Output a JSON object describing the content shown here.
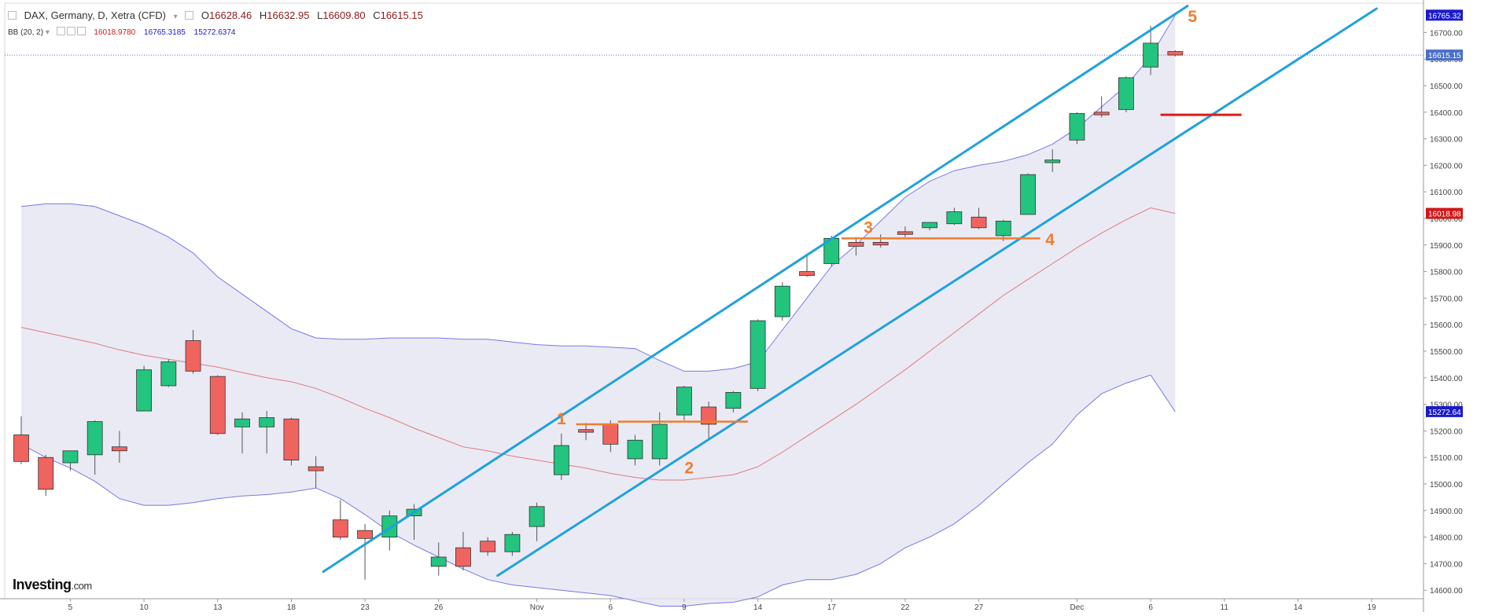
{
  "header": {
    "symbol": "DAX, Germany, D, Xetra (CFD)",
    "open_key": "O",
    "open": "16628.46",
    "high_key": "H",
    "high": "16632.95",
    "low_key": "L",
    "low": "16609.80",
    "close_key": "C",
    "close": "16615.15"
  },
  "indicator": {
    "label": "BB (20, 2)",
    "middle": "16018.9780",
    "upper": "16765.3185",
    "lower": "15272.6374"
  },
  "logo": {
    "brand": "Investing",
    "suffix": ".com"
  },
  "colors": {
    "bull": "#22c47e",
    "bear": "#f06460",
    "band_fill": "#e6e6f2",
    "band_line": "#7777e8",
    "middle_line": "#e07a7a",
    "channel": "#1fa1dd",
    "orange": "#f07d2e",
    "red_marker": "#dd1c1c"
  },
  "chart_data": {
    "type": "candlestick",
    "title": "DAX, Germany, D, Xetra (CFD)",
    "ylim": [
      14580,
      16800
    ],
    "y_ticks": [
      14600,
      14700,
      14800,
      14900,
      15000,
      15100,
      15200,
      15300,
      15400,
      15500,
      15600,
      15700,
      15800,
      15900,
      16000,
      16100,
      16200,
      16300,
      16400,
      16500,
      16600,
      16700
    ],
    "x_ticks": [
      {
        "i": 2,
        "label": "5"
      },
      {
        "i": 5,
        "label": "10"
      },
      {
        "i": 8,
        "label": "13"
      },
      {
        "i": 11,
        "label": "18"
      },
      {
        "i": 14,
        "label": "23"
      },
      {
        "i": 17,
        "label": "26"
      },
      {
        "i": 21,
        "label": "Nov"
      },
      {
        "i": 24,
        "label": "6"
      },
      {
        "i": 27,
        "label": "9"
      },
      {
        "i": 30,
        "label": "14"
      },
      {
        "i": 33,
        "label": "17"
      },
      {
        "i": 36,
        "label": "22"
      },
      {
        "i": 39,
        "label": "27"
      },
      {
        "i": 43,
        "label": "Dec"
      },
      {
        "i": 46,
        "label": "6"
      },
      {
        "i": 49,
        "label": "11"
      },
      {
        "i": 52,
        "label": "14"
      },
      {
        "i": 55,
        "label": "19"
      }
    ],
    "candles": [
      {
        "o": 15185,
        "h": 15255,
        "l": 15075,
        "c": 15085
      },
      {
        "o": 15100,
        "h": 15110,
        "l": 14955,
        "c": 14980
      },
      {
        "o": 15080,
        "h": 15125,
        "l": 15050,
        "c": 15125
      },
      {
        "o": 15110,
        "h": 15240,
        "l": 15035,
        "c": 15235
      },
      {
        "o": 15140,
        "h": 15200,
        "l": 15080,
        "c": 15125
      },
      {
        "o": 15275,
        "h": 15445,
        "l": 15275,
        "c": 15430
      },
      {
        "o": 15370,
        "h": 15470,
        "l": 15365,
        "c": 15460
      },
      {
        "o": 15540,
        "h": 15580,
        "l": 15415,
        "c": 15425
      },
      {
        "o": 15405,
        "h": 15410,
        "l": 15185,
        "c": 15190
      },
      {
        "o": 15215,
        "h": 15270,
        "l": 15115,
        "c": 15245
      },
      {
        "o": 15215,
        "h": 15275,
        "l": 15115,
        "c": 15250
      },
      {
        "o": 15245,
        "h": 15250,
        "l": 15070,
        "c": 15090
      },
      {
        "o": 15065,
        "h": 15105,
        "l": 14985,
        "c": 15050
      },
      {
        "o": 14865,
        "h": 14940,
        "l": 14790,
        "c": 14800
      },
      {
        "o": 14825,
        "h": 14850,
        "l": 14640,
        "c": 14795
      },
      {
        "o": 14800,
        "h": 14900,
        "l": 14750,
        "c": 14880
      },
      {
        "o": 14880,
        "h": 14925,
        "l": 14790,
        "c": 14905
      },
      {
        "o": 14690,
        "h": 14780,
        "l": 14655,
        "c": 14725
      },
      {
        "o": 14760,
        "h": 14820,
        "l": 14675,
        "c": 14690
      },
      {
        "o": 14785,
        "h": 14800,
        "l": 14730,
        "c": 14745
      },
      {
        "o": 14745,
        "h": 14820,
        "l": 14730,
        "c": 14810
      },
      {
        "o": 14840,
        "h": 14930,
        "l": 14785,
        "c": 14915
      },
      {
        "o": 15035,
        "h": 15190,
        "l": 15015,
        "c": 15145
      },
      {
        "o": 15205,
        "h": 15230,
        "l": 15165,
        "c": 15195
      },
      {
        "o": 15225,
        "h": 15240,
        "l": 15120,
        "c": 15150
      },
      {
        "o": 15095,
        "h": 15185,
        "l": 15070,
        "c": 15165
      },
      {
        "o": 15095,
        "h": 15270,
        "l": 15070,
        "c": 15225
      },
      {
        "o": 15260,
        "h": 15370,
        "l": 15240,
        "c": 15365
      },
      {
        "o": 15290,
        "h": 15310,
        "l": 15170,
        "c": 15225
      },
      {
        "o": 15285,
        "h": 15350,
        "l": 15270,
        "c": 15345
      },
      {
        "o": 15360,
        "h": 15620,
        "l": 15350,
        "c": 15615
      },
      {
        "o": 15630,
        "h": 15760,
        "l": 15615,
        "c": 15745
      },
      {
        "o": 15800,
        "h": 15860,
        "l": 15780,
        "c": 15785
      },
      {
        "o": 15830,
        "h": 15935,
        "l": 15820,
        "c": 15925
      },
      {
        "o": 15910,
        "h": 15930,
        "l": 15860,
        "c": 15895
      },
      {
        "o": 15910,
        "h": 15940,
        "l": 15890,
        "c": 15900
      },
      {
        "o": 15950,
        "h": 15970,
        "l": 15930,
        "c": 15940
      },
      {
        "o": 15965,
        "h": 15985,
        "l": 15955,
        "c": 15985
      },
      {
        "o": 15980,
        "h": 16040,
        "l": 15975,
        "c": 16025
      },
      {
        "o": 16005,
        "h": 16040,
        "l": 15960,
        "c": 15965
      },
      {
        "o": 15935,
        "h": 15995,
        "l": 15915,
        "c": 15990
      },
      {
        "o": 16015,
        "h": 16170,
        "l": 16015,
        "c": 16165
      },
      {
        "o": 16210,
        "h": 16260,
        "l": 16175,
        "c": 16220
      },
      {
        "o": 16295,
        "h": 16400,
        "l": 16280,
        "c": 16395
      },
      {
        "o": 16400,
        "h": 16460,
        "l": 16380,
        "c": 16390
      },
      {
        "o": 16410,
        "h": 16535,
        "l": 16400,
        "c": 16530
      },
      {
        "o": 16570,
        "h": 16725,
        "l": 16540,
        "c": 16660
      },
      {
        "o": 16628.46,
        "h": 16632.95,
        "l": 16609.8,
        "c": 16615.15
      }
    ],
    "bollinger": {
      "upper": [
        16045,
        16055,
        16055,
        16045,
        16010,
        15975,
        15930,
        15870,
        15780,
        15715,
        15650,
        15585,
        15550,
        15545,
        15545,
        15550,
        15550,
        15550,
        15545,
        15545,
        15535,
        15525,
        15520,
        15520,
        15515,
        15510,
        15465,
        15425,
        15425,
        15435,
        15460,
        15580,
        15700,
        15820,
        15900,
        15990,
        16080,
        16140,
        16180,
        16200,
        16215,
        16240,
        16280,
        16340,
        16420,
        16500,
        16610,
        16765.32
      ],
      "middle": [
        15590,
        15570,
        15550,
        15530,
        15505,
        15485,
        15470,
        15455,
        15440,
        15420,
        15400,
        15385,
        15360,
        15325,
        15285,
        15250,
        15210,
        15175,
        15140,
        15125,
        15105,
        15090,
        15075,
        15060,
        15040,
        15025,
        15015,
        15015,
        15025,
        15035,
        15065,
        15120,
        15180,
        15240,
        15300,
        15365,
        15430,
        15500,
        15570,
        15640,
        15710,
        15770,
        15830,
        15890,
        15945,
        15995,
        16040,
        16018.98
      ],
      "lower": [
        15150,
        15100,
        15060,
        15010,
        14945,
        14920,
        14920,
        14930,
        14945,
        14955,
        14960,
        14970,
        14985,
        14945,
        14885,
        14820,
        14770,
        14725,
        14680,
        14640,
        14620,
        14610,
        14600,
        14590,
        14580,
        14560,
        14540,
        14540,
        14550,
        14555,
        14575,
        14620,
        14640,
        14640,
        14660,
        14700,
        14760,
        14800,
        14850,
        14920,
        15000,
        15080,
        15150,
        15260,
        15340,
        15380,
        15410,
        15272.64
      ]
    },
    "channel_upper": {
      "from": {
        "i": 12.3,
        "v": 14670
      },
      "to": {
        "i": 47.5,
        "v": 16800
      }
    },
    "channel_lower": {
      "from": {
        "i": 19.4,
        "v": 14655
      },
      "to": {
        "i": 55.2,
        "v": 16790
      }
    },
    "horizontal_lines": [
      {
        "from_i": 22.6,
        "to_i": 24.3,
        "v": 15225,
        "color": "orange"
      },
      {
        "from_i": 24.3,
        "to_i": 29.6,
        "v": 15235,
        "color": "orange"
      },
      {
        "from_i": 33.4,
        "to_i": 41.5,
        "v": 15925,
        "color": "orange"
      },
      {
        "from_i": 46.4,
        "to_i": 49.7,
        "v": 16390,
        "color": "red"
      }
    ],
    "wave_labels": [
      {
        "text": "1",
        "i": 22.0,
        "v": 15225
      },
      {
        "text": "2",
        "i": 27.2,
        "v": 15040
      },
      {
        "text": "3",
        "i": 34.5,
        "v": 15945
      },
      {
        "text": "4",
        "i": 41.9,
        "v": 15900
      },
      {
        "text": "5",
        "i": 47.7,
        "v": 16740
      }
    ],
    "last_price_label": "16615.15",
    "axis_badges": [
      {
        "v": 16765.32,
        "text": "16765.32",
        "color": "#1a1acd"
      },
      {
        "v": 16018.98,
        "text": "16018.98",
        "color": "#d01818"
      },
      {
        "v": 15272.64,
        "text": "15272.64",
        "color": "#1a1acd"
      }
    ]
  }
}
